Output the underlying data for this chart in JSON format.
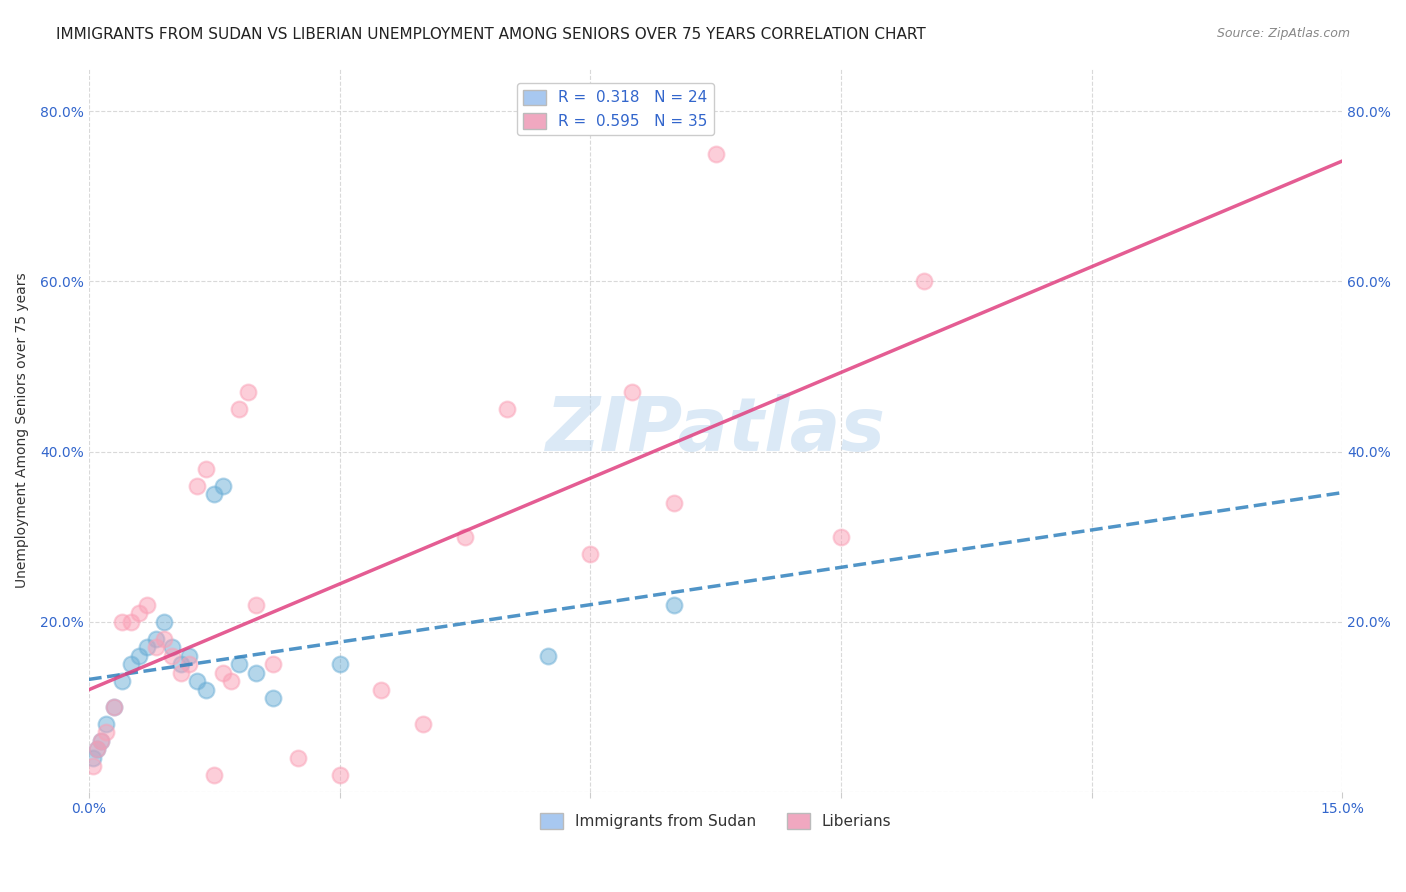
{
  "title": "IMMIGRANTS FROM SUDAN VS LIBERIAN UNEMPLOYMENT AMONG SENIORS OVER 75 YEARS CORRELATION CHART",
  "source": "Source: ZipAtlas.com",
  "ylabel": "Unemployment Among Seniors over 75 years",
  "xlim": [
    0.0,
    0.15
  ],
  "ylim": [
    0.0,
    0.85
  ],
  "xticks": [
    0.0,
    0.03,
    0.06,
    0.09,
    0.12,
    0.15
  ],
  "yticks": [
    0.0,
    0.2,
    0.4,
    0.6,
    0.8
  ],
  "legend_top": [
    {
      "label": "R =  0.318   N = 24",
      "color": "#a8c8f0"
    },
    {
      "label": "R =  0.595   N = 35",
      "color": "#f0a8c0"
    }
  ],
  "legend_bottom": [
    {
      "label": "Immigrants from Sudan",
      "color": "#a8c8f0"
    },
    {
      "label": "Liberians",
      "color": "#f0a8c0"
    }
  ],
  "sudan_x": [
    0.0005,
    0.001,
    0.0015,
    0.002,
    0.003,
    0.004,
    0.005,
    0.006,
    0.007,
    0.008,
    0.009,
    0.01,
    0.011,
    0.012,
    0.013,
    0.014,
    0.015,
    0.016,
    0.018,
    0.02,
    0.022,
    0.03,
    0.055,
    0.07
  ],
  "sudan_y": [
    0.04,
    0.05,
    0.06,
    0.08,
    0.1,
    0.13,
    0.15,
    0.16,
    0.17,
    0.18,
    0.2,
    0.17,
    0.15,
    0.16,
    0.13,
    0.12,
    0.35,
    0.36,
    0.15,
    0.14,
    0.11,
    0.15,
    0.16,
    0.22
  ],
  "liberian_x": [
    0.0005,
    0.001,
    0.0015,
    0.002,
    0.003,
    0.004,
    0.005,
    0.006,
    0.007,
    0.008,
    0.009,
    0.01,
    0.011,
    0.012,
    0.013,
    0.014,
    0.015,
    0.016,
    0.017,
    0.018,
    0.019,
    0.02,
    0.022,
    0.025,
    0.03,
    0.035,
    0.04,
    0.045,
    0.05,
    0.06,
    0.065,
    0.07,
    0.075,
    0.09,
    0.1
  ],
  "liberian_y": [
    0.03,
    0.05,
    0.06,
    0.07,
    0.1,
    0.2,
    0.2,
    0.21,
    0.22,
    0.17,
    0.18,
    0.16,
    0.14,
    0.15,
    0.36,
    0.38,
    0.02,
    0.14,
    0.13,
    0.45,
    0.47,
    0.22,
    0.15,
    0.04,
    0.02,
    0.12,
    0.08,
    0.3,
    0.45,
    0.28,
    0.47,
    0.34,
    0.75,
    0.3,
    0.6
  ],
  "sudan_dot_color": "#6baed6",
  "liberian_dot_color": "#fa9fb5",
  "sudan_trend_color": "#3182bd",
  "liberian_trend_color": "#e04080",
  "background_color": "#ffffff",
  "grid_color": "#d0d0d0",
  "watermark_text": "ZIPatlas",
  "title_fontsize": 11,
  "axis_label_fontsize": 10,
  "tick_fontsize": 10,
  "legend_fontsize": 11
}
